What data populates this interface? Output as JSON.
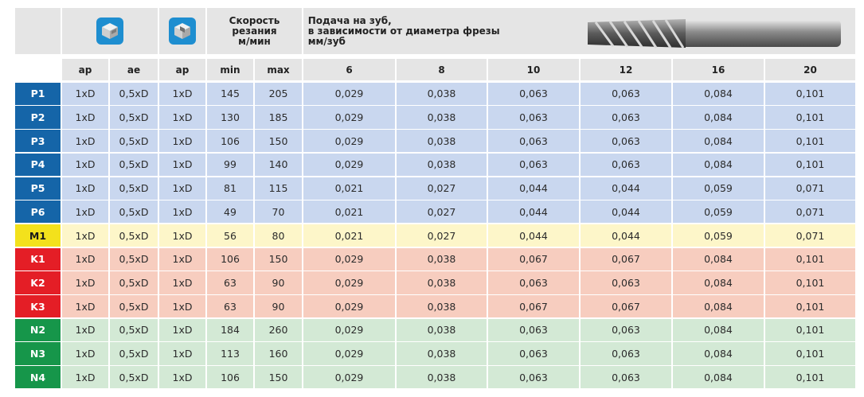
{
  "header": {
    "speed_title": [
      "Скорость",
      "резания",
      "м/мин"
    ],
    "feed_title": [
      "Подача на зуб,",
      "в зависимости от диаметра фрезы",
      "мм/зуб"
    ],
    "icons": [
      "cube-slot-icon",
      "cube-pocket-icon"
    ],
    "tool_image": "end-mill-cutter-image"
  },
  "columns": [
    "ap",
    "ae",
    "ap",
    "min",
    "max",
    "6",
    "8",
    "10",
    "12",
    "16",
    "20"
  ],
  "colors": {
    "P_label": "#1565a8",
    "P_row": "#c9d7ef",
    "M_label": "#f3e11c",
    "M_row": "#fdf6c9",
    "K_label": "#e41e26",
    "K_row": "#f7cdbf",
    "N_label": "#16964a",
    "N_row": "#d3e9d5",
    "header_bg": "#e5e5e5"
  },
  "rows": [
    {
      "mat": "P1",
      "group": "P",
      "cells": [
        "1xD",
        "0,5xD",
        "1xD",
        "145",
        "205",
        "0,029",
        "0,038",
        "0,063",
        "0,063",
        "0,084",
        "0,101"
      ]
    },
    {
      "mat": "P2",
      "group": "P",
      "cells": [
        "1xD",
        "0,5xD",
        "1xD",
        "130",
        "185",
        "0,029",
        "0,038",
        "0,063",
        "0,063",
        "0,084",
        "0,101"
      ]
    },
    {
      "mat": "P3",
      "group": "P",
      "cells": [
        "1xD",
        "0,5xD",
        "1xD",
        "106",
        "150",
        "0,029",
        "0,038",
        "0,063",
        "0,063",
        "0,084",
        "0,101"
      ]
    },
    {
      "mat": "P4",
      "group": "P",
      "cells": [
        "1xD",
        "0,5xD",
        "1xD",
        "99",
        "140",
        "0,029",
        "0,038",
        "0,063",
        "0,063",
        "0,084",
        "0,101"
      ]
    },
    {
      "mat": "P5",
      "group": "P",
      "cells": [
        "1xD",
        "0,5xD",
        "1xD",
        "81",
        "115",
        "0,021",
        "0,027",
        "0,044",
        "0,044",
        "0,059",
        "0,071"
      ]
    },
    {
      "mat": "P6",
      "group": "P",
      "cells": [
        "1xD",
        "0,5xD",
        "1xD",
        "49",
        "70",
        "0,021",
        "0,027",
        "0,044",
        "0,044",
        "0,059",
        "0,071"
      ]
    },
    {
      "mat": "M1",
      "group": "M",
      "cells": [
        "1xD",
        "0,5xD",
        "1xD",
        "56",
        "80",
        "0,021",
        "0,027",
        "0,044",
        "0,044",
        "0,059",
        "0,071"
      ]
    },
    {
      "mat": "K1",
      "group": "K",
      "cells": [
        "1xD",
        "0,5xD",
        "1xD",
        "106",
        "150",
        "0,029",
        "0,038",
        "0,067",
        "0,067",
        "0,084",
        "0,101"
      ]
    },
    {
      "mat": "K2",
      "group": "K",
      "cells": [
        "1xD",
        "0,5xD",
        "1xD",
        "63",
        "90",
        "0,029",
        "0,038",
        "0,063",
        "0,063",
        "0,084",
        "0,101"
      ]
    },
    {
      "mat": "K3",
      "group": "K",
      "cells": [
        "1xD",
        "0,5xD",
        "1xD",
        "63",
        "90",
        "0,029",
        "0,038",
        "0,067",
        "0,067",
        "0,084",
        "0,101"
      ]
    },
    {
      "mat": "N2",
      "group": "N",
      "cells": [
        "1xD",
        "0,5xD",
        "1xD",
        "184",
        "260",
        "0,029",
        "0,038",
        "0,063",
        "0,063",
        "0,084",
        "0,101"
      ]
    },
    {
      "mat": "N3",
      "group": "N",
      "cells": [
        "1xD",
        "0,5xD",
        "1xD",
        "113",
        "160",
        "0,029",
        "0,038",
        "0,063",
        "0,063",
        "0,084",
        "0,101"
      ]
    },
    {
      "mat": "N4",
      "group": "N",
      "cells": [
        "1xD",
        "0,5xD",
        "1xD",
        "106",
        "150",
        "0,029",
        "0,038",
        "0,063",
        "0,063",
        "0,084",
        "0,101"
      ]
    }
  ]
}
